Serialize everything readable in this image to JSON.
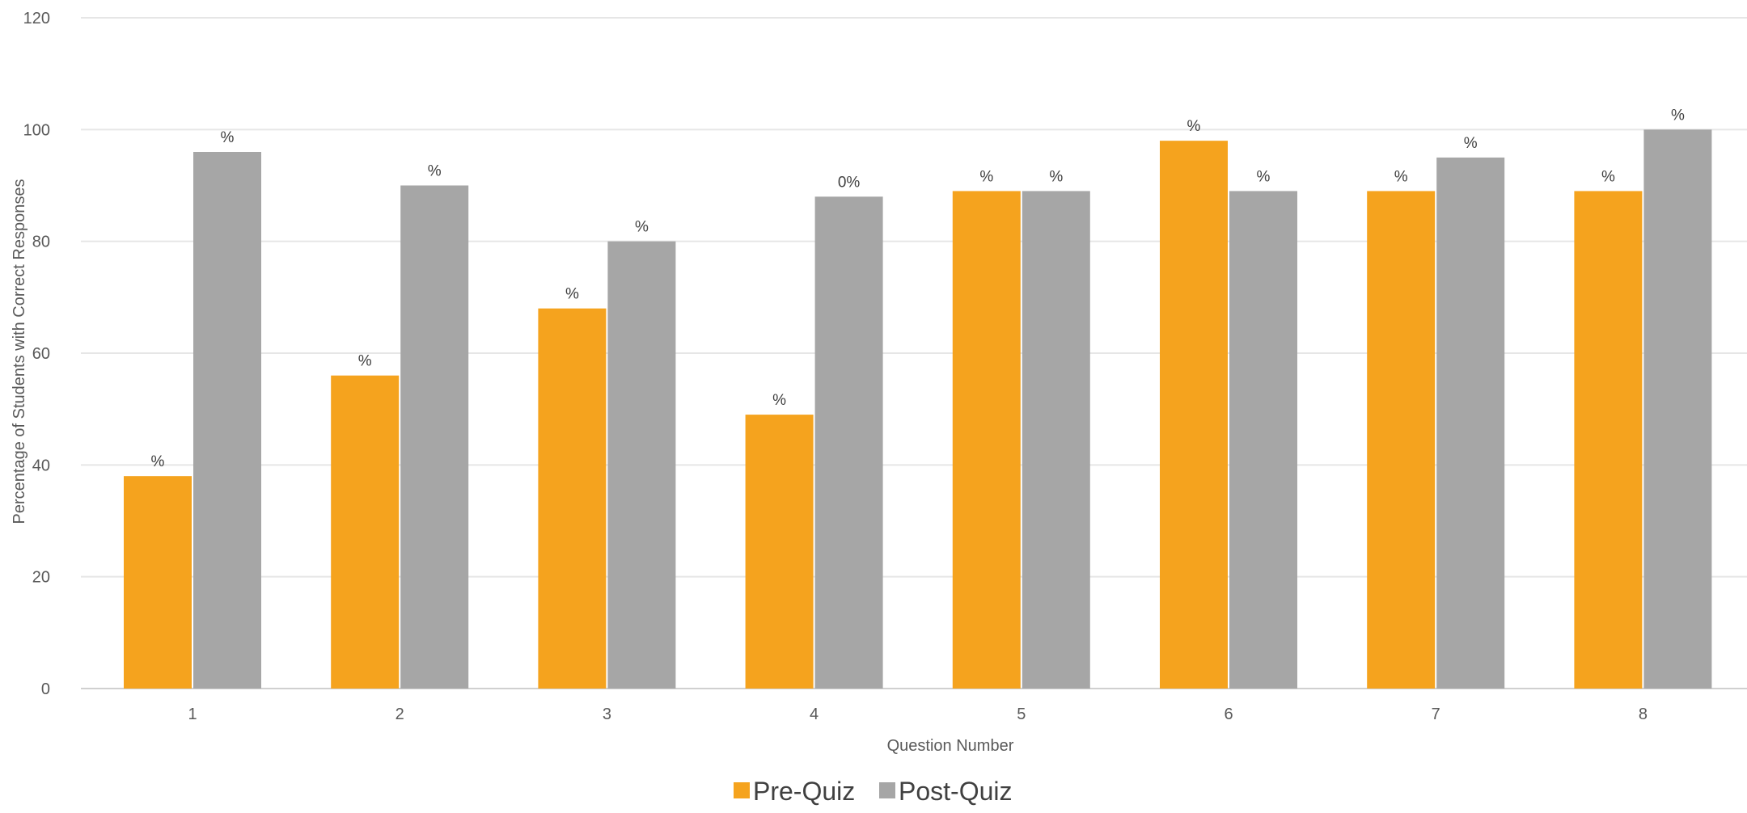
{
  "chart_data": {
    "type": "bar",
    "title": "",
    "xlabel": "Question Number",
    "ylabel": "Percentage of Students with Correct Responses",
    "ylim": [
      0,
      120
    ],
    "yticks": [
      "0",
      "20",
      "40",
      "60",
      "80",
      "100",
      "120"
    ],
    "categories": [
      "1",
      "2",
      "3",
      "4",
      "5",
      "6",
      "7",
      "8"
    ],
    "grid": true,
    "legend_position": "bottom",
    "series": [
      {
        "name": "Pre-Quiz",
        "color": "#f5a31e",
        "values": [
          38,
          56,
          68,
          49,
          89,
          98,
          89,
          89
        ],
        "labels": [
          "%",
          "%",
          "%",
          "%",
          "%",
          "%",
          "%",
          "%"
        ]
      },
      {
        "name": "Post-Quiz",
        "color": "#a6a6a6",
        "values": [
          96,
          90,
          80,
          88,
          89,
          89,
          95,
          100
        ],
        "labels": [
          "%",
          "%",
          "%",
          "0%",
          "%",
          "%",
          "%",
          "%"
        ]
      }
    ]
  }
}
